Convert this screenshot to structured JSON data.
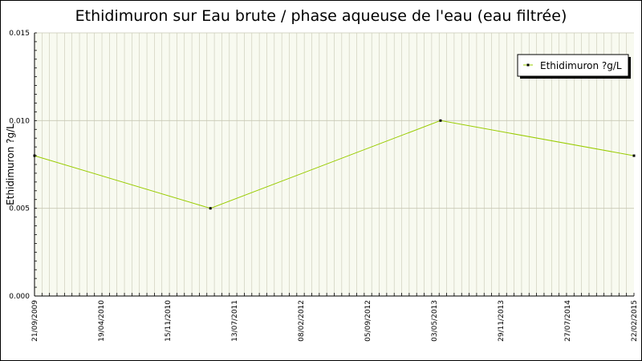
{
  "chart_data": {
    "type": "line",
    "title": "Ethidimuron sur Eau brute / phase aqueuse de l'eau (eau filtrée)",
    "xlabel": "",
    "ylabel": "Ethidimuron ?g/L",
    "x_tick_labels": [
      "21/09/2009",
      "19/04/2010",
      "15/11/2010",
      "13/07/2011",
      "08/02/2012",
      "05/09/2012",
      "03/05/2013",
      "29/11/2013",
      "27/07/2014",
      "22/02/2015"
    ],
    "y_tick_labels": [
      "0.000",
      "0.005",
      "0.010",
      "0.015"
    ],
    "ylim": [
      0,
      0.015
    ],
    "xlim": [
      "2009-09-21",
      "2015-02-22"
    ],
    "series": [
      {
        "name": "Ethidimuron ?g/L",
        "color": "#99cc00",
        "points": [
          {
            "x": "2009-09-21",
            "y": 0.008
          },
          {
            "x": "2011-04-25",
            "y": 0.005
          },
          {
            "x": "2013-05-24",
            "y": 0.01
          },
          {
            "x": "2015-02-22",
            "y": 0.008
          }
        ]
      }
    ],
    "grid": true,
    "legend_position": "top-right",
    "colors": {
      "plot_background": "#f8faf0",
      "grid_line": "#c8c8b4",
      "line": "#99cc00",
      "marker": "#000000"
    }
  }
}
